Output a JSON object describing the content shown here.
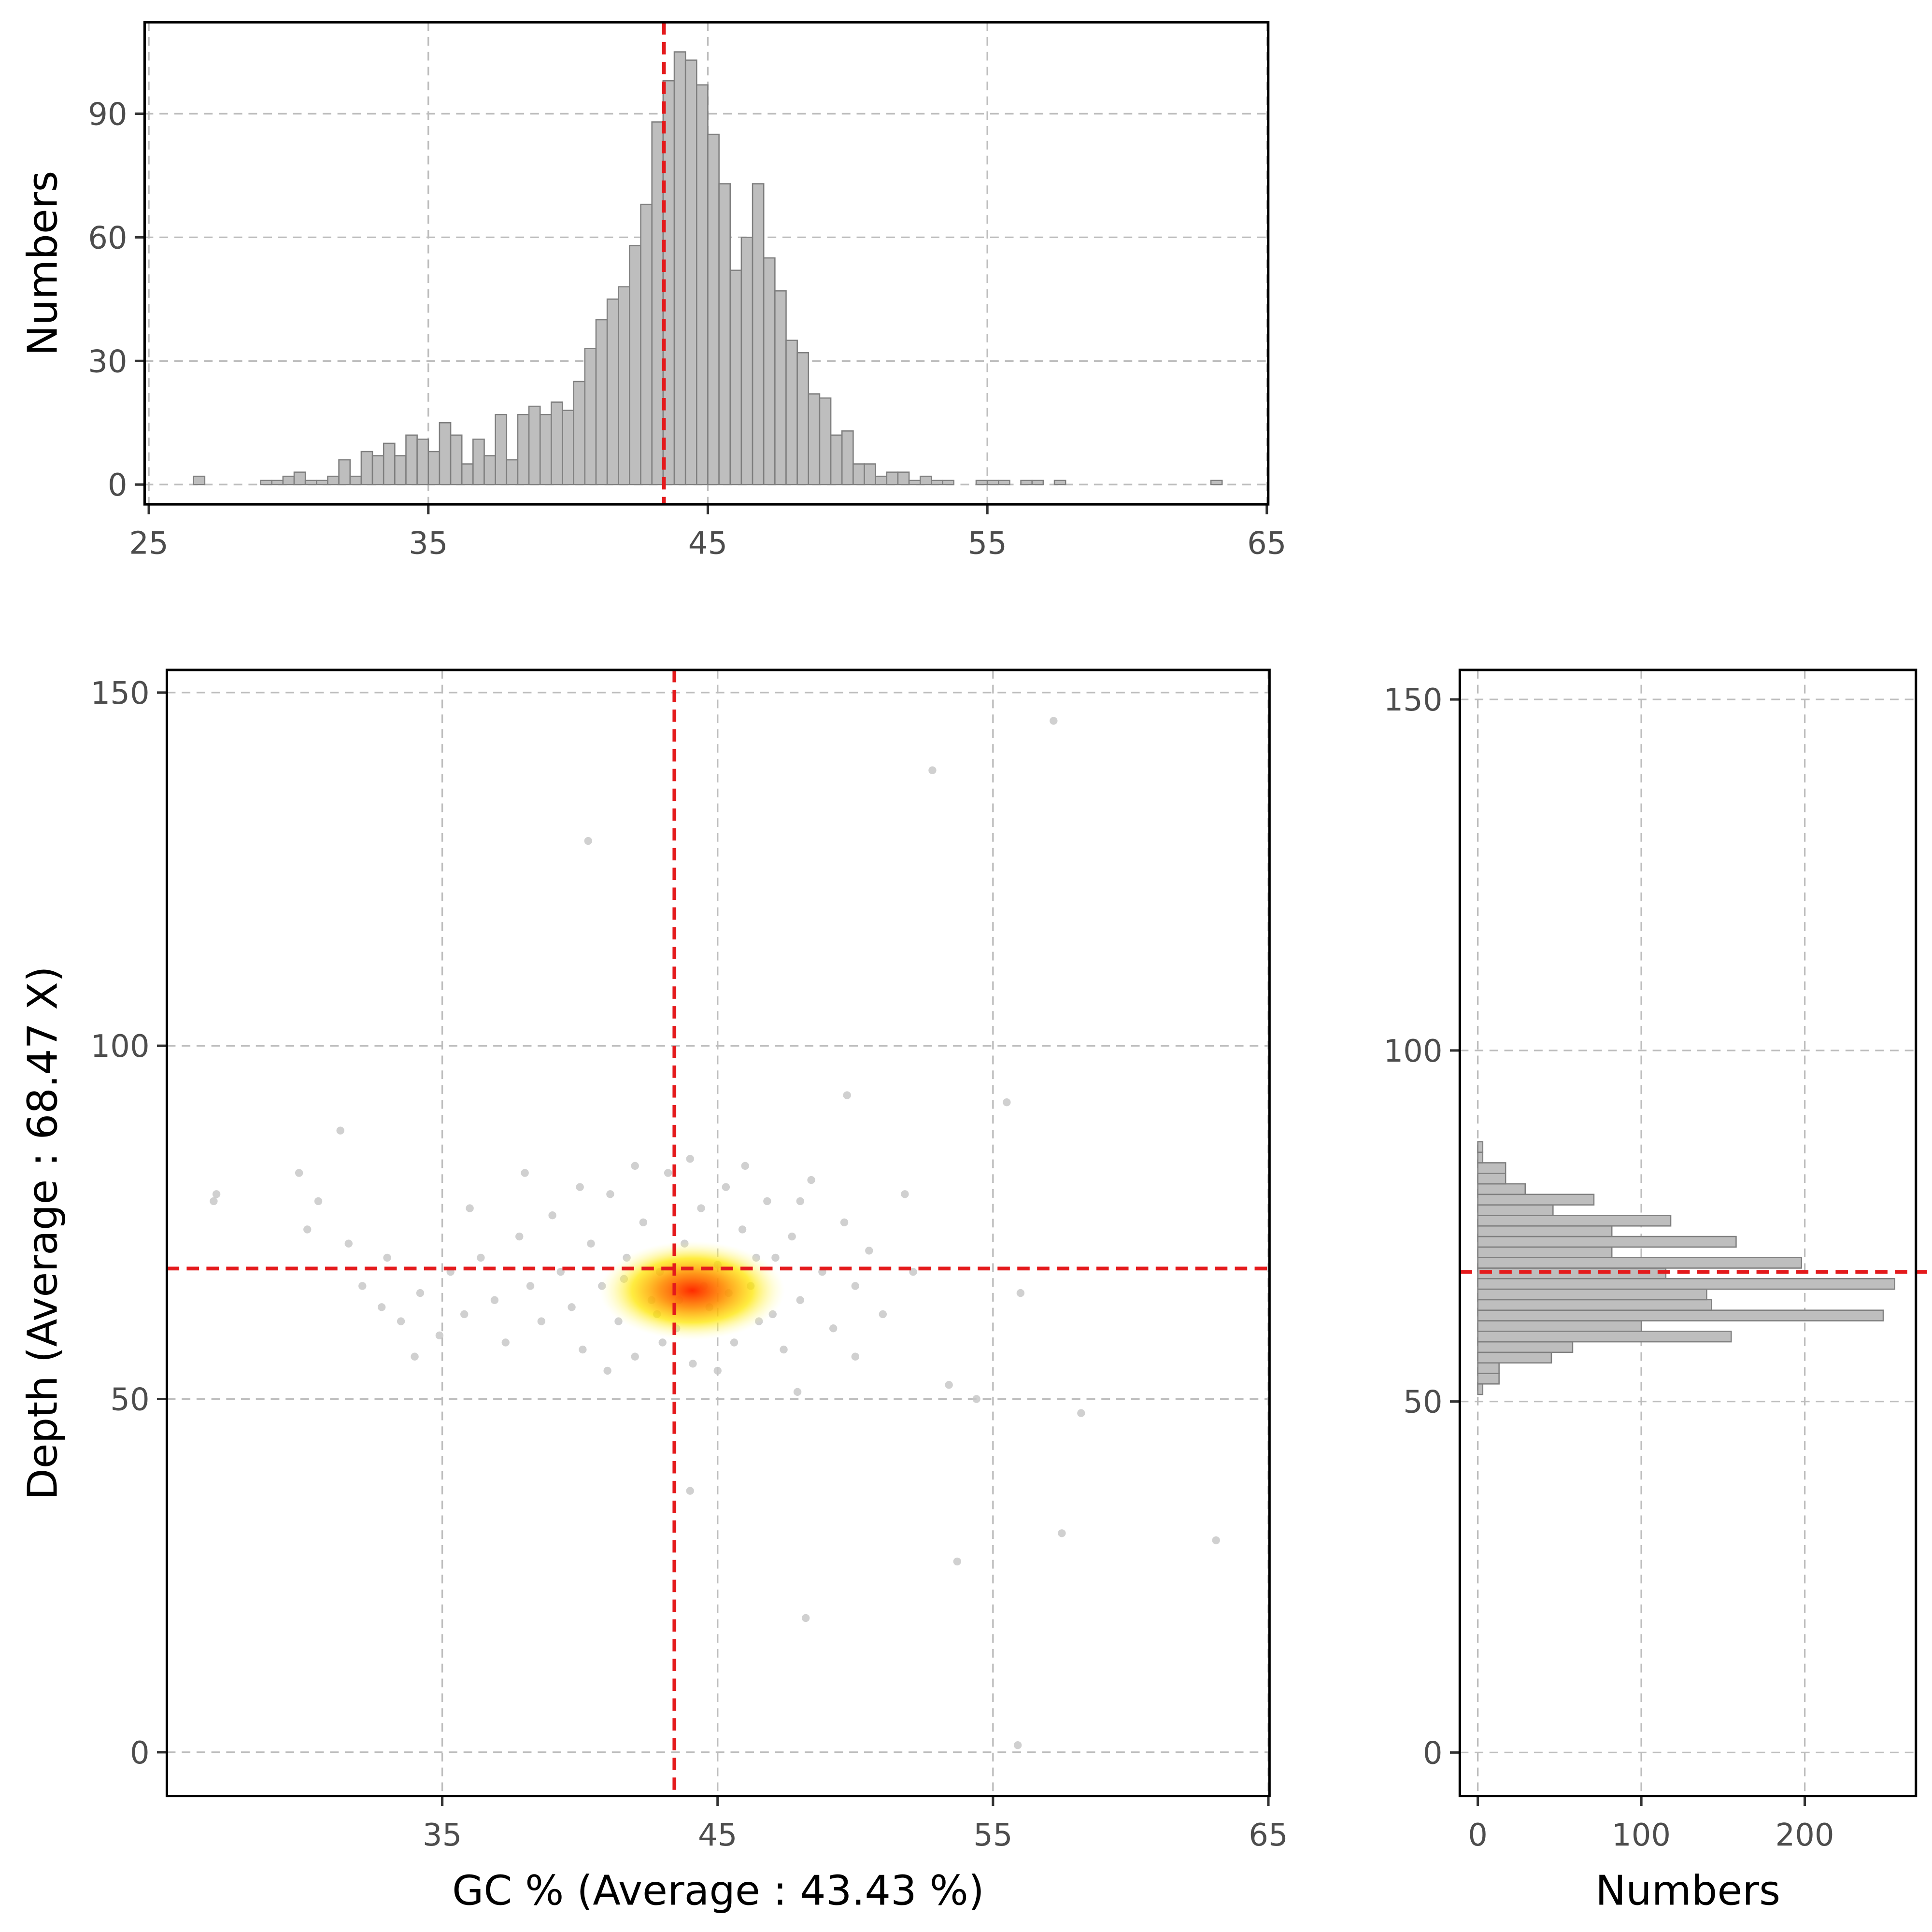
{
  "chart_data": [
    {
      "type": "histogram",
      "y_label": "Numbers",
      "bins": [
        26.6,
        27,
        27.4,
        27.8,
        28.2,
        28.6,
        29,
        29.4,
        29.8,
        30.2,
        30.6,
        31,
        31.4,
        31.8,
        32.2,
        32.6,
        33,
        33.4,
        33.8,
        34.2,
        34.6,
        35,
        35.4,
        35.8,
        36.2,
        36.6,
        37,
        37.4,
        37.8,
        38.2,
        38.6,
        39,
        39.4,
        39.8,
        40.2,
        40.6,
        41,
        41.4,
        41.8,
        42.2,
        42.6,
        43,
        43.4,
        43.8,
        44.2,
        44.6,
        45,
        45.4,
        45.8,
        46.2,
        46.6,
        47,
        47.4,
        47.8,
        48.2,
        48.6,
        49,
        49.4,
        49.8,
        50.2,
        50.6,
        51,
        51.4,
        51.8,
        52.2,
        52.6,
        53,
        53.4,
        53.8,
        54.2,
        54.6,
        55,
        55.4,
        55.8,
        56.2,
        56.6,
        57,
        57.4,
        57.8,
        58.2,
        58.6,
        59,
        59.4,
        59.8,
        60.2,
        60.6,
        61,
        61.4,
        61.8,
        62.2,
        62.6,
        63,
        63.4
      ],
      "values": [
        2,
        0,
        0,
        0,
        0,
        0,
        1,
        1,
        2,
        3,
        1,
        1,
        2,
        6,
        2,
        8,
        7,
        10,
        7,
        12,
        11,
        8,
        15,
        12,
        5,
        11,
        7,
        17,
        6,
        17,
        19,
        17,
        20,
        18,
        25,
        33,
        40,
        45,
        48,
        58,
        68,
        88,
        98,
        105,
        103,
        97,
        85,
        73,
        52,
        60,
        73,
        55,
        47,
        35,
        32,
        22,
        21,
        12,
        13,
        5,
        5,
        2,
        3,
        3,
        1,
        2,
        1,
        1,
        0,
        0,
        1,
        1,
        1,
        0,
        1,
        1,
        0,
        1,
        0,
        0,
        0,
        0,
        0,
        0,
        0,
        0,
        0,
        0,
        0,
        0,
        0,
        1
      ],
      "color": "#bebebe",
      "edge_color": "#7f7f7f",
      "xlim": [
        24.85,
        65.05
      ],
      "xticks": [
        25,
        35,
        45,
        55,
        65
      ],
      "ylim": [
        -4.8,
        112.2
      ],
      "yticks": [
        0,
        30,
        60,
        90
      ],
      "vline": 43.43,
      "line_color": "#e41a1c",
      "grid": true
    },
    {
      "type": "scatter",
      "x_label": "GC % (Average : 43.43 %)",
      "y_label": "Depth (Average : 68.47 X)",
      "x": [
        57.2,
        52.8,
        40.3,
        49.7,
        55.5,
        56,
        53.4,
        54.4,
        58.2,
        44,
        57.5,
        63.1,
        53.7,
        48.2,
        55.9,
        26.8,
        26.7,
        31.3,
        29.8,
        30.5,
        30.1,
        31.6,
        47.9,
        32.1,
        32.8,
        33.5,
        34.2,
        34.9,
        35.3,
        35.8,
        36.4,
        36.9,
        37.3,
        37.8,
        38.2,
        38.6,
        39.0,
        39.3,
        39.7,
        40.1,
        40.4,
        40.8,
        41.1,
        41.4,
        41.7,
        42.0,
        42.3,
        42.6,
        42.9,
        43.2,
        43.5,
        43.8,
        44.1,
        44.4,
        44.7,
        45.0,
        45.3,
        45.6,
        45.9,
        46.2,
        46.5,
        46.8,
        47.1,
        47.4,
        47.7,
        48.0,
        48.4,
        48.8,
        49.2,
        49.6,
        50.0,
        50.5,
        51.0,
        51.8,
        52.1,
        33.0,
        34.0,
        36.0,
        38.0,
        40.0,
        42.0,
        44.0,
        46.0,
        48.0,
        50.0,
        41.0,
        43.0,
        45.0,
        47.0,
        44.5,
        43.6,
        42.8,
        45.4,
        46.4,
        41.6
      ],
      "y": [
        146,
        139,
        129,
        93,
        92,
        65,
        52,
        50,
        48,
        37,
        31,
        30,
        27,
        19,
        1,
        79,
        78,
        88,
        82,
        78,
        74,
        72,
        51,
        66,
        63,
        61,
        65,
        59,
        68,
        62,
        70,
        64,
        58,
        73,
        66,
        61,
        76,
        68,
        63,
        57,
        72,
        66,
        79,
        61,
        70,
        56,
        75,
        64,
        68,
        82,
        60,
        72,
        55,
        77,
        63,
        69,
        80,
        58,
        74,
        66,
        61,
        78,
        70,
        57,
        73,
        64,
        81,
        68,
        60,
        75,
        66,
        71,
        62,
        79,
        68,
        70,
        56,
        77,
        82,
        80,
        83,
        84,
        83,
        78,
        56,
        54,
        58,
        54,
        62,
        66,
        64,
        62,
        65,
        70,
        67
      ],
      "color": "#c8c8c8",
      "xlim": [
        25,
        65.04
      ],
      "xticks": [
        35,
        45,
        55,
        65
      ],
      "ylim": [
        -6.2,
        153.2
      ],
      "yticks": [
        0,
        50,
        100,
        150
      ],
      "vline": 43.43,
      "hline": 68.47,
      "line_color": "#e41a1c",
      "grid": true
    },
    {
      "type": "histogram",
      "orientation": "horizontal",
      "x_label": "Numbers",
      "bins": [
        51,
        52.5,
        54,
        55.5,
        57,
        58.5,
        60,
        61.5,
        63,
        64.5,
        66,
        67.5,
        69,
        70.5,
        72,
        73.5,
        75,
        76.5,
        78,
        79.5,
        81,
        82.5,
        84,
        85.5,
        87
      ],
      "values": [
        3,
        13,
        13,
        45,
        58,
        155,
        100,
        248,
        143,
        140,
        255,
        115,
        198,
        82,
        158,
        82,
        118,
        46,
        71,
        29,
        17,
        17,
        3,
        3
      ],
      "color": "#bebebe",
      "edge_color": "#7f7f7f",
      "xlim": [
        -11,
        268
      ],
      "xticks": [
        0,
        100,
        200
      ],
      "ylim": [
        -6.2,
        154.2
      ],
      "yticks": [
        0,
        50,
        100,
        150
      ],
      "hline": 68.47,
      "line_color": "#e41a1c",
      "grid": true
    }
  ]
}
